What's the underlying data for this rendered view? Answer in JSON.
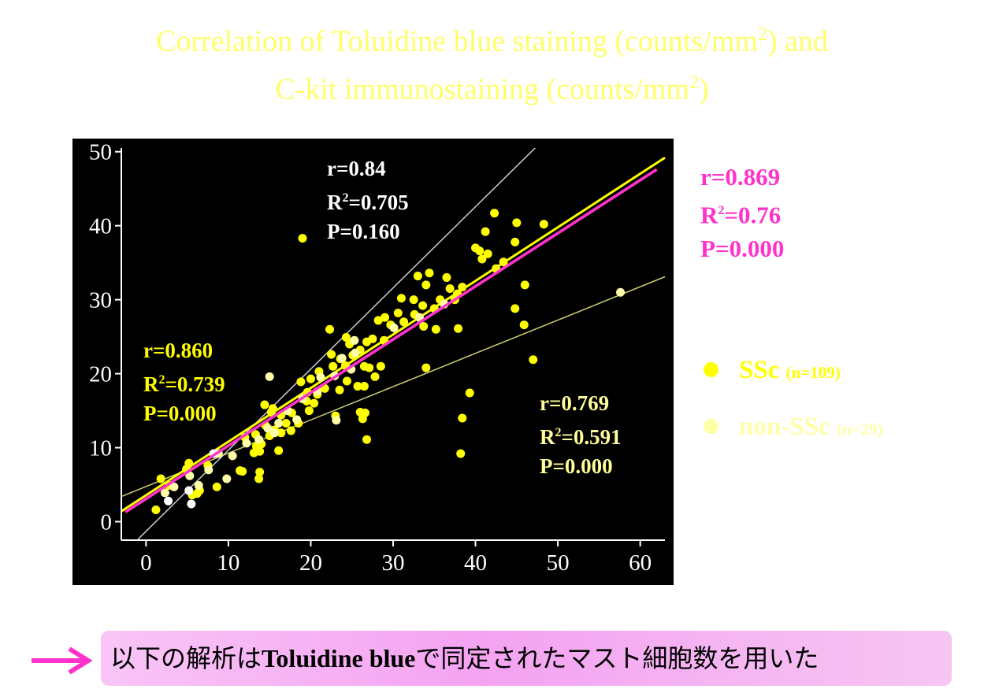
{
  "title": {
    "line1_a": "Correlation of Toluidine blue staining (counts/mm",
    "line1_sup": "2",
    "line1_b": ") and",
    "line2_a": "C-kit immunostaining (counts/mm",
    "line2_sup": "2",
    "line2_b": ")"
  },
  "stats": {
    "all": {
      "r": "r=0.869",
      "r2_prefix": "R",
      "r2_sup": "2",
      "r2_value": "=0.76",
      "p": "P=0.000",
      "color": "#ff33cc"
    },
    "white": {
      "r": "r=0.84",
      "r2_prefix": "R",
      "r2_sup": "2",
      "r2_value": "=0.705",
      "p": "P=0.160",
      "color": "#ffffff"
    },
    "ssc": {
      "r": "r=0.860",
      "r2_prefix": "R",
      "r2_sup": "2",
      "r2_value": "=0.739",
      "p": "P=0.000",
      "color": "#ffff00"
    },
    "nonssc": {
      "r": "r=0.769",
      "r2_prefix": "R",
      "r2_sup": "2",
      "r2_value": "=0.591",
      "p": "P=0.000",
      "color": "#ffff99"
    }
  },
  "legend": {
    "ssc": {
      "label": "SSc",
      "n": "(n=109)",
      "color": "#ffff00"
    },
    "nonssc": {
      "label": "non-SSc",
      "n": "(n=29)",
      "color": "#ffffa8"
    }
  },
  "banner": {
    "text_before": "以下の解析は",
    "text_bold": "Toluidine blue",
    "text_after": "で同定されたマスト細胞数を用いた",
    "arrow_color": "#ff33cc"
  },
  "chart_data": {
    "type": "scatter",
    "title": "",
    "xlabel": "",
    "ylabel": "",
    "xlim": [
      -3,
      63
    ],
    "ylim": [
      -2.5,
      50.5
    ],
    "xticks": [
      0,
      10,
      20,
      30,
      40,
      50,
      60
    ],
    "yticks": [
      0,
      10,
      20,
      30,
      40,
      50
    ],
    "background": "#000000",
    "axis_color": "#ffffff",
    "legend_position": "right",
    "series": [
      {
        "name": "SSc",
        "color": "#ffff00",
        "points": [
          [
            19.0,
            38.3
          ],
          [
            42.3,
            41.7
          ],
          [
            45.0,
            40.4
          ],
          [
            48.3,
            40.2
          ],
          [
            41.2,
            39.2
          ],
          [
            44.8,
            37.8
          ],
          [
            40.0,
            37.0
          ],
          [
            40.5,
            36.6
          ],
          [
            41.5,
            36.2
          ],
          [
            43.4,
            35.1
          ],
          [
            42.5,
            34.2
          ],
          [
            40.8,
            35.5
          ],
          [
            33.0,
            33.2
          ],
          [
            34.4,
            33.6
          ],
          [
            36.5,
            33.0
          ],
          [
            38.4,
            31.7
          ],
          [
            34.0,
            32.0
          ],
          [
            31.0,
            30.2
          ],
          [
            32.5,
            30.0
          ],
          [
            33.6,
            29.2
          ],
          [
            35.7,
            30.0
          ],
          [
            37.5,
            30.0
          ],
          [
            35.0,
            28.8
          ],
          [
            29.0,
            27.6
          ],
          [
            30.6,
            28.2
          ],
          [
            32.6,
            28.0
          ],
          [
            28.2,
            27.2
          ],
          [
            29.7,
            26.6
          ],
          [
            33.7,
            26.4
          ],
          [
            35.2,
            26.0
          ],
          [
            37.9,
            26.1
          ],
          [
            46.0,
            32.0
          ],
          [
            44.8,
            28.8
          ],
          [
            45.9,
            26.6
          ],
          [
            47.0,
            21.9
          ],
          [
            27.5,
            24.7
          ],
          [
            28.9,
            24.5
          ],
          [
            26.0,
            23.2
          ],
          [
            24.7,
            24.0
          ],
          [
            22.5,
            22.6
          ],
          [
            23.6,
            22.0
          ],
          [
            25.1,
            22.5
          ],
          [
            26.8,
            24.3
          ],
          [
            22.7,
            21.0
          ],
          [
            24.2,
            21.1
          ],
          [
            26.5,
            21.0
          ],
          [
            28.5,
            21.0
          ],
          [
            22.3,
            26.0
          ],
          [
            24.4,
            19.0
          ],
          [
            25.7,
            18.3
          ],
          [
            26.5,
            18.3
          ],
          [
            27.8,
            19.6
          ],
          [
            34.0,
            20.8
          ],
          [
            21.0,
            20.3
          ],
          [
            20.0,
            19.3
          ],
          [
            19.6,
            17.5
          ],
          [
            20.8,
            17.2
          ],
          [
            18.8,
            18.9
          ],
          [
            19.5,
            16.3
          ],
          [
            20.4,
            16.0
          ],
          [
            23.5,
            17.8
          ],
          [
            23.0,
            14.3
          ],
          [
            26.0,
            14.8
          ],
          [
            26.6,
            14.7
          ],
          [
            26.3,
            13.9
          ],
          [
            26.8,
            11.1
          ],
          [
            14.4,
            15.8
          ],
          [
            15.2,
            14.8
          ],
          [
            16.4,
            14.4
          ],
          [
            17.7,
            14.7
          ],
          [
            17.0,
            13.3
          ],
          [
            18.5,
            13.3
          ],
          [
            14.5,
            13.0
          ],
          [
            15.6,
            12.4
          ],
          [
            16.4,
            12.0
          ],
          [
            17.6,
            12.3
          ],
          [
            15.0,
            11.6
          ],
          [
            13.3,
            11.8
          ],
          [
            12.0,
            11.4
          ],
          [
            14.0,
            10.5
          ],
          [
            13.8,
            9.5
          ],
          [
            13.1,
            9.3
          ],
          [
            16.1,
            9.6
          ],
          [
            11.4,
            6.9
          ],
          [
            11.7,
            6.8
          ],
          [
            13.8,
            6.7
          ],
          [
            13.7,
            5.8
          ],
          [
            8.6,
            4.7
          ],
          [
            6.5,
            4.2
          ],
          [
            6.2,
            3.8
          ],
          [
            5.6,
            3.6
          ],
          [
            2.8,
            4.9
          ],
          [
            1.8,
            5.8
          ],
          [
            4.9,
            7.1
          ],
          [
            5.2,
            7.9
          ],
          [
            7.5,
            7.6
          ],
          [
            1.2,
            1.6
          ],
          [
            39.3,
            17.4
          ],
          [
            38.4,
            14.0
          ],
          [
            38.2,
            9.2
          ],
          [
            37.8,
            30.8
          ],
          [
            36.9,
            31.5
          ],
          [
            31.3,
            27.0
          ],
          [
            27.1,
            20.8
          ],
          [
            24.3,
            24.9
          ],
          [
            21.7,
            18.0
          ],
          [
            19.8,
            15.0
          ],
          [
            15.4,
            15.3
          ],
          [
            13.4,
            10.2
          ]
        ]
      },
      {
        "name": "non-SSc",
        "color": "#ffffa8",
        "points": [
          [
            57.6,
            31.0
          ],
          [
            15.0,
            19.6
          ],
          [
            23.8,
            22.1
          ],
          [
            25.3,
            24.5
          ],
          [
            17.2,
            15.0
          ],
          [
            19.0,
            16.6
          ],
          [
            18.3,
            13.8
          ],
          [
            16.1,
            13.3
          ],
          [
            14.8,
            12.6
          ],
          [
            15.6,
            12.0
          ],
          [
            13.7,
            11.1
          ],
          [
            12.2,
            10.6
          ],
          [
            10.5,
            8.9
          ],
          [
            8.8,
            9.2
          ],
          [
            7.6,
            7.0
          ],
          [
            5.3,
            6.2
          ],
          [
            3.4,
            4.7
          ],
          [
            2.3,
            3.9
          ],
          [
            6.4,
            4.9
          ],
          [
            9.8,
            5.8
          ],
          [
            21.2,
            19.5
          ],
          [
            22.9,
            19.7
          ],
          [
            24.9,
            20.6
          ],
          [
            20.8,
            17.6
          ],
          [
            25.4,
            22.8
          ],
          [
            30.1,
            26.2
          ],
          [
            33.2,
            27.6
          ],
          [
            36.2,
            29.4
          ],
          [
            23.1,
            13.7
          ]
        ]
      },
      {
        "name": "",
        "color": "#ffffff",
        "points": [
          [
            2.7,
            2.8
          ],
          [
            5.2,
            4.2
          ],
          [
            5.5,
            2.4
          ],
          [
            8.2,
            9.2
          ]
        ]
      }
    ],
    "lines": [
      {
        "id": "white-fit",
        "color": "#cccccc",
        "x": [
          -1.0,
          48.6
        ],
        "y": [
          -2.4,
          52.0
        ]
      },
      {
        "id": "nonssc-fit",
        "color": "#cfcf73",
        "x": [
          -3.0,
          63.0
        ],
        "y": [
          3.4,
          33.1
        ]
      },
      {
        "id": "ssc-fit",
        "color": "#ffff00",
        "x": [
          -3.0,
          63.0
        ],
        "y": [
          1.4,
          49.2
        ]
      },
      {
        "id": "all-fit",
        "color": "#ff33cc",
        "x": [
          -2.5,
          62.0
        ],
        "y": [
          1.3,
          47.6
        ]
      }
    ]
  }
}
